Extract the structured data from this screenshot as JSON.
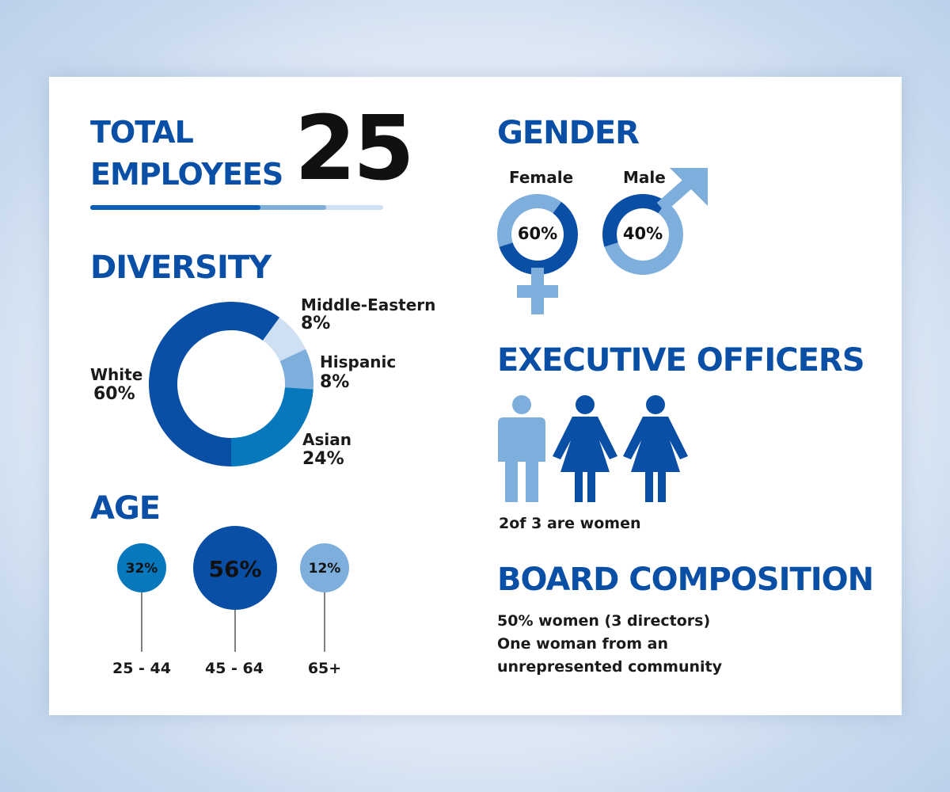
{
  "total": {
    "heading_line1": "TOTAL",
    "heading_line2": "EMPLOYEES",
    "count": "25"
  },
  "diversity": {
    "heading": "DIVERSITY",
    "labels": {
      "white": {
        "name": "White",
        "pct": "60%"
      },
      "middle_eastern": {
        "name": "Middle-Eastern",
        "pct": "8%"
      },
      "hispanic": {
        "name": "Hispanic",
        "pct": "8%"
      },
      "asian": {
        "name": "Asian",
        "pct": "24%"
      }
    }
  },
  "age": {
    "heading": "AGE",
    "groups": [
      {
        "range": "25 - 44",
        "pct": "32%"
      },
      {
        "range": "45 - 64",
        "pct": "56%"
      },
      {
        "range": "65+",
        "pct": "12%"
      }
    ]
  },
  "gender": {
    "heading": "GENDER",
    "female": {
      "label": "Female",
      "pct": "60%"
    },
    "male": {
      "label": "Male",
      "pct": "40%"
    }
  },
  "executive": {
    "heading": "EXECUTIVE OFFICERS",
    "caption": "2of 3 are women"
  },
  "board": {
    "heading": "BOARD COMPOSITION",
    "lines": [
      "50% women (3 directors)",
      "One woman from an",
      "unrepresented community"
    ]
  },
  "colors": {
    "heading": "#0a4fa6",
    "dark_blue": "#0a4fa6",
    "mid_blue": "#0878bd",
    "light_blue": "#7eaedc",
    "pale_blue": "#cfe0f2"
  },
  "chart_data": [
    {
      "type": "pie",
      "title": "DIVERSITY",
      "categories": [
        "White",
        "Middle-Eastern",
        "Hispanic",
        "Asian"
      ],
      "values": [
        60,
        8,
        8,
        24
      ],
      "colors": [
        "#0a4fa6",
        "#cfe0f2",
        "#7eaedc",
        "#0878bd"
      ],
      "donut": true
    },
    {
      "type": "bar",
      "title": "AGE",
      "categories": [
        "25 - 44",
        "45 - 64",
        "65+"
      ],
      "values": [
        32,
        56,
        12
      ],
      "colors": [
        "#0878bd",
        "#0a4fa6",
        "#7eaedc"
      ],
      "style": "bubble"
    },
    {
      "type": "pie",
      "title": "GENDER",
      "categories": [
        "Female",
        "Male"
      ],
      "values": [
        60,
        40
      ],
      "style": "two gauge rings"
    }
  ]
}
